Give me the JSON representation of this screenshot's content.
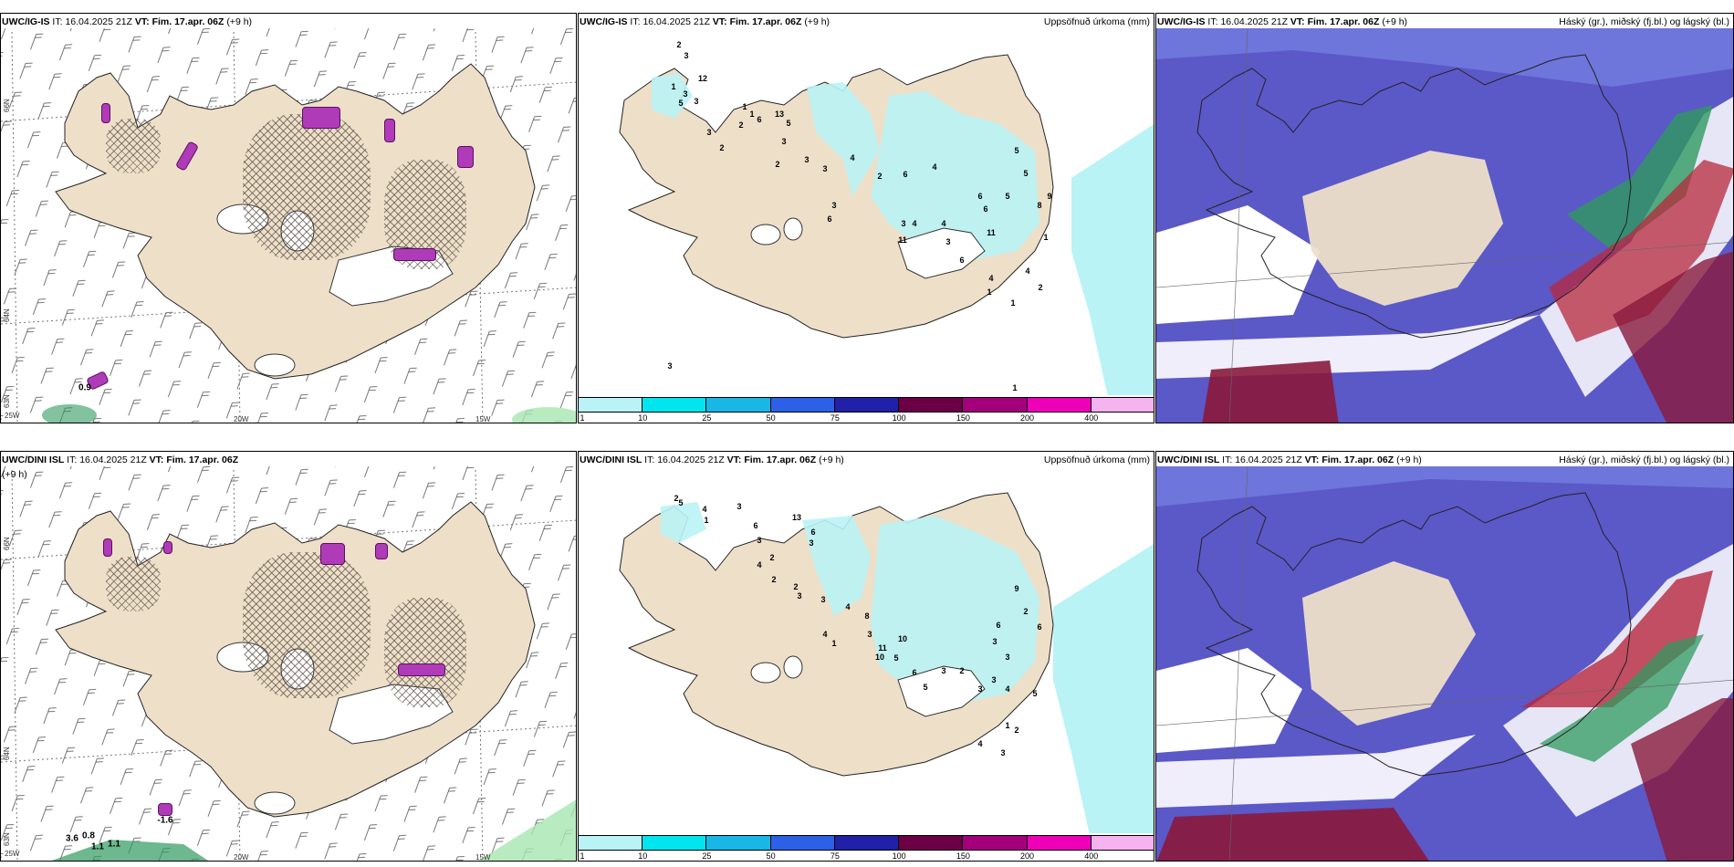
{
  "colors": {
    "land": "#eedfc9",
    "precip_light": "#b9f3f5",
    "cloud_high": "#5b58c8",
    "cloud_mid": "#b8283c",
    "cloud_low": "#2f9a5f"
  },
  "panels": [
    {
      "row": "top",
      "model": "UWC/IG-IS",
      "it_label": "IT:",
      "it_value": "16.04.2025 21Z",
      "vt_label": "VT:",
      "vt_value": "Fim. 17.apr. 06Z",
      "lead": "(+9 h)",
      "wind_panel": {
        "lat_labels": [
          "66N",
          "64N",
          "63N"
        ],
        "lon_labels": [
          "25W",
          "20W",
          "15W"
        ],
        "marks": [
          "0.9"
        ]
      },
      "precip_panel": {
        "title_right": "Uppsöfnuð úrkoma (mm)",
        "points": [
          "2",
          "3",
          "12",
          "1",
          "3",
          "3",
          "5",
          "3",
          "2",
          "1",
          "1",
          "2",
          "6",
          "13",
          "5",
          "3",
          "2",
          "3",
          "3",
          "4",
          "2",
          "6",
          "4",
          "3",
          "6",
          "3",
          "11",
          "4",
          "4",
          "3",
          "6",
          "11",
          "6",
          "6",
          "5",
          "5",
          "5",
          "9",
          "8",
          "4",
          "4",
          "2",
          "1",
          "1",
          "1",
          "1",
          "3"
        ]
      },
      "cloud_panel": {
        "title_right": "Háský (gr.), miðský (fj.bl.) og lágský (bl.)"
      }
    },
    {
      "row": "bottom",
      "model": "UWC/DINI ISL",
      "it_label": "IT:",
      "it_value": "16.04.2025 21Z",
      "vt_label": "VT:",
      "vt_value": "Fim. 17.apr. 06Z",
      "lead": "(+9 h)",
      "lead_wrap": "h)",
      "wind_panel": {
        "lat_labels": [
          "66N",
          "64N",
          "63N"
        ],
        "lon_labels": [
          "25W",
          "20W",
          "15W"
        ],
        "marks": [
          "-1.6",
          "3.6",
          "0.8",
          "1.1",
          "1.1"
        ]
      },
      "precip_panel": {
        "title_right": "Uppsöfnuð úrkoma (mm)",
        "points": [
          "2",
          "5",
          "4",
          "1",
          "2",
          "3",
          "6",
          "3",
          "4",
          "2",
          "13",
          "6",
          "3",
          "2",
          "3",
          "3",
          "4",
          "8",
          "3",
          "1",
          "4",
          "10",
          "10",
          "11",
          "5",
          "6",
          "5",
          "3",
          "2",
          "3",
          "3",
          "6",
          "2",
          "9",
          "6",
          "3",
          "3",
          "4",
          "1",
          "5",
          "2",
          "4",
          "3"
        ]
      },
      "cloud_panel": {
        "title_right": "Háský (gr.), miðský (fj.bl.) og lágský (bl.)"
      }
    }
  ],
  "colorbar": {
    "ticks": [
      "1",
      "10",
      "25",
      "50",
      "75",
      "100",
      "150",
      "200",
      "400"
    ],
    "colors": [
      "#b9f3f5",
      "#00e5ee",
      "#19b7e6",
      "#2c60e6",
      "#2020a8",
      "#6c0046",
      "#a4007c",
      "#ee00b8",
      "#f5b3f0"
    ]
  }
}
